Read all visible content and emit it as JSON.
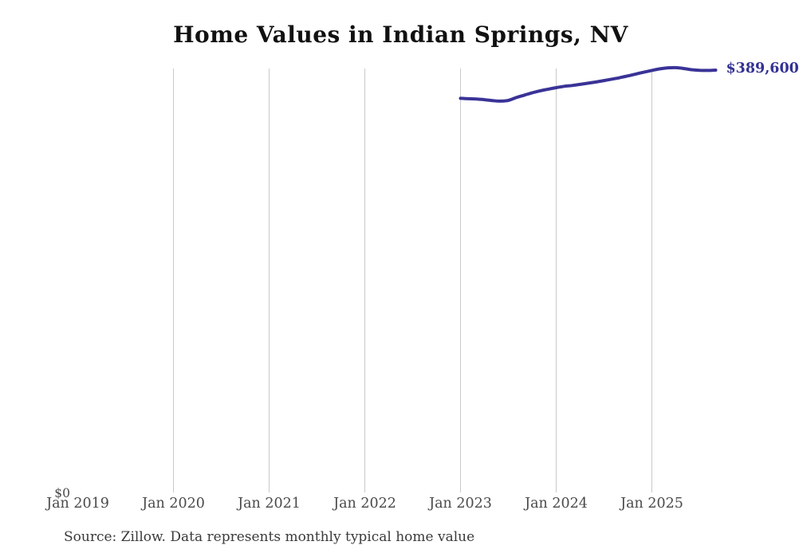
{
  "page": {
    "source_note": "Source: Zillow. Data represents monthly typical home value"
  },
  "chart_data": {
    "type": "line",
    "title": "Home Values in Indian Springs, NV",
    "xlabel": "",
    "ylabel": "",
    "x_tick_labels": [
      "Jan 2019",
      "Jan 2020",
      "Jan 2021",
      "Jan 2022",
      "Jan 2023",
      "Jan 2024",
      "Jan 2025"
    ],
    "y_zero_label": "$0",
    "end_value_label": "$389,600",
    "ylim": [
      0,
      392000
    ],
    "grid": "vertical-gridlines-only",
    "legend": "none",
    "colors": {
      "line": "#3a3397",
      "end_label": "#333193",
      "gridline": "#c9c9c9",
      "axis_text": "#4a4a4a",
      "title_text": "#111111"
    },
    "series": [
      {
        "name": "Typical home value",
        "points": [
          {
            "date": "2023-01",
            "value": 363700
          },
          {
            "date": "2023-02",
            "value": 363300
          },
          {
            "date": "2023-03",
            "value": 363100
          },
          {
            "date": "2023-04",
            "value": 362400
          },
          {
            "date": "2023-05",
            "value": 361600
          },
          {
            "date": "2023-06",
            "value": 361100
          },
          {
            "date": "2023-07",
            "value": 361800
          },
          {
            "date": "2023-08",
            "value": 364400
          },
          {
            "date": "2023-09",
            "value": 366600
          },
          {
            "date": "2023-10",
            "value": 368800
          },
          {
            "date": "2023-11",
            "value": 370600
          },
          {
            "date": "2023-12",
            "value": 372100
          },
          {
            "date": "2024-01",
            "value": 373500
          },
          {
            "date": "2024-02",
            "value": 374700
          },
          {
            "date": "2024-03",
            "value": 375500
          },
          {
            "date": "2024-04",
            "value": 376500
          },
          {
            "date": "2024-05",
            "value": 377600
          },
          {
            "date": "2024-06",
            "value": 378700
          },
          {
            "date": "2024-07",
            "value": 380000
          },
          {
            "date": "2024-08",
            "value": 381300
          },
          {
            "date": "2024-09",
            "value": 382700
          },
          {
            "date": "2024-10",
            "value": 384300
          },
          {
            "date": "2024-11",
            "value": 386000
          },
          {
            "date": "2024-12",
            "value": 387700
          },
          {
            "date": "2025-01",
            "value": 389300
          },
          {
            "date": "2025-02",
            "value": 390800
          },
          {
            "date": "2025-03",
            "value": 391700
          },
          {
            "date": "2025-04",
            "value": 391900
          },
          {
            "date": "2025-05",
            "value": 391100
          },
          {
            "date": "2025-06",
            "value": 390000
          },
          {
            "date": "2025-07",
            "value": 389400
          },
          {
            "date": "2025-08",
            "value": 389300
          },
          {
            "date": "2025-09",
            "value": 389600
          }
        ]
      }
    ]
  }
}
